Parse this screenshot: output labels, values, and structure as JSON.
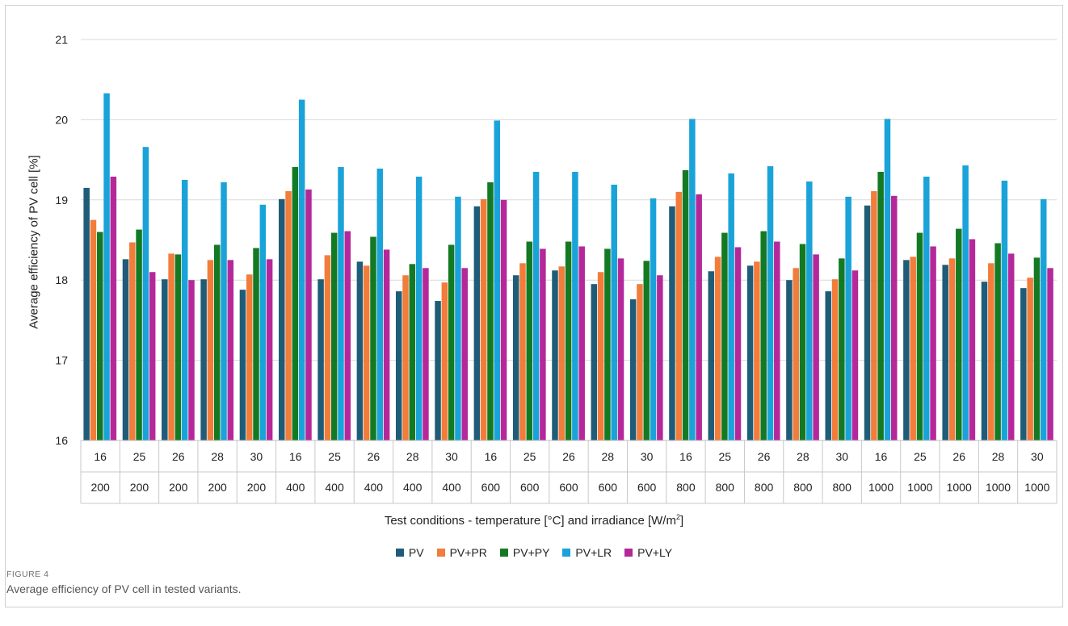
{
  "chart_data": {
    "type": "bar",
    "ylabel": "Average efficiency of PV cell [%]",
    "xlabel_parts": [
      "Test conditions - temperature [°C]  and irradiance [W/m",
      "2",
      "]"
    ],
    "ylim": [
      16,
      21
    ],
    "yticks": [
      16,
      17,
      18,
      19,
      20,
      21
    ],
    "grid": true,
    "legend_position": "bottom",
    "categories_temperature": [
      "16",
      "25",
      "26",
      "28",
      "30",
      "16",
      "25",
      "26",
      "28",
      "30",
      "16",
      "25",
      "26",
      "28",
      "30",
      "16",
      "25",
      "26",
      "28",
      "30",
      "16",
      "25",
      "26",
      "28",
      "30"
    ],
    "categories_irradiance": [
      "200",
      "200",
      "200",
      "200",
      "200",
      "400",
      "400",
      "400",
      "400",
      "400",
      "600",
      "600",
      "600",
      "600",
      "600",
      "800",
      "800",
      "800",
      "800",
      "800",
      "1000",
      "1000",
      "1000",
      "1000",
      "1000"
    ],
    "series": [
      {
        "name": "PV",
        "color": "#1f5c78",
        "values": [
          19.15,
          18.26,
          18.01,
          18.01,
          17.88,
          19.01,
          18.01,
          18.23,
          17.86,
          17.74,
          18.92,
          18.06,
          18.12,
          17.95,
          17.76,
          18.92,
          18.11,
          18.18,
          18.0,
          17.86,
          18.93,
          18.25,
          18.19,
          17.98,
          17.9
        ]
      },
      {
        "name": "PV+PR",
        "color": "#f27c3a",
        "values": [
          18.75,
          18.47,
          18.33,
          18.25,
          18.07,
          19.11,
          18.31,
          18.18,
          18.06,
          17.97,
          19.01,
          18.21,
          18.17,
          18.1,
          17.95,
          19.1,
          18.29,
          18.23,
          18.15,
          18.01,
          19.11,
          18.29,
          18.27,
          18.21,
          18.03
        ]
      },
      {
        "name": "PV+PY",
        "color": "#137a23",
        "values": [
          18.6,
          18.63,
          18.32,
          18.44,
          18.4,
          19.41,
          18.59,
          18.54,
          18.2,
          18.44,
          19.22,
          18.48,
          18.48,
          18.39,
          18.24,
          19.37,
          18.59,
          18.61,
          18.45,
          18.27,
          19.35,
          18.59,
          18.64,
          18.46,
          18.28
        ]
      },
      {
        "name": "PV+LR",
        "color": "#1aa3d9",
        "values": [
          20.33,
          19.66,
          19.25,
          19.22,
          18.94,
          20.25,
          19.41,
          19.39,
          19.29,
          19.04,
          19.99,
          19.35,
          19.35,
          19.19,
          19.02,
          20.01,
          19.33,
          19.42,
          19.23,
          19.04,
          20.01,
          19.29,
          19.43,
          19.24,
          19.01
        ]
      },
      {
        "name": "PV+LY",
        "color": "#b5289a",
        "values": [
          19.29,
          18.1,
          18.0,
          18.25,
          18.26,
          19.13,
          18.61,
          18.38,
          18.15,
          18.15,
          19.0,
          18.39,
          18.42,
          18.27,
          18.06,
          19.07,
          18.41,
          18.48,
          18.32,
          18.12,
          19.05,
          18.42,
          18.51,
          18.33,
          18.15
        ]
      }
    ]
  },
  "caption": {
    "label": "FIGURE 4",
    "text": "Average efficiency of PV cell in tested variants."
  }
}
